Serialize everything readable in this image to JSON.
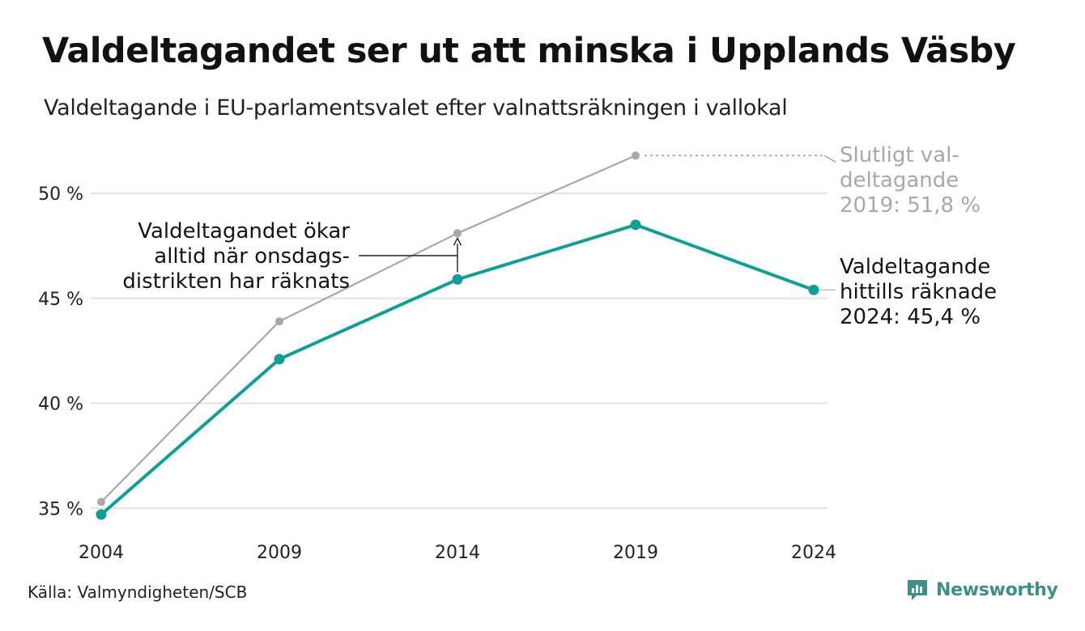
{
  "header": {
    "title": "Valdeltagandet ser ut att minska i Upplands Väsby",
    "subtitle": "Valdeltagande i EU-parlamentsvalet efter valnattsräkningen i vallokal"
  },
  "chart_data": {
    "type": "line",
    "title": "Valdeltagandet ser ut att minska i Upplands Väsby",
    "subtitle": "Valdeltagande i EU-parlamentsvalet efter valnattsräkningen i vallokal",
    "categories": [
      "2004",
      "2009",
      "2014",
      "2019",
      "2024"
    ],
    "ylim": [
      34.6,
      52
    ],
    "yticks": [
      35,
      40,
      45,
      50
    ],
    "ytick_labels": [
      "35 %",
      "40 %",
      "45 %",
      "50 %"
    ],
    "grid": true,
    "series": [
      {
        "key": "final",
        "color": "#a8a8a8",
        "values": [
          35.3,
          43.9,
          48.1,
          51.8,
          null
        ]
      },
      {
        "key": "election_night",
        "color": "#139e95",
        "values": [
          34.7,
          42.1,
          45.9,
          48.5,
          45.4
        ]
      }
    ],
    "annotations": {
      "final_2019": [
        "Slutligt val-",
        "deltagande",
        "2019: 51,8 %"
      ],
      "night_2024": [
        "Valdeltagande",
        "hittills räknade",
        "2024: 45,4 %"
      ],
      "wednesday": [
        "Valdeltagandet ökar",
        "alltid när onsdags-",
        "distrikten har räknats"
      ]
    }
  },
  "footer": {
    "source": "Källa: Valmyndigheten/SCB",
    "brand": "Newsworthy",
    "brand_icon": "newsworthy-logo-icon",
    "brand_color": "#3f8f86"
  }
}
